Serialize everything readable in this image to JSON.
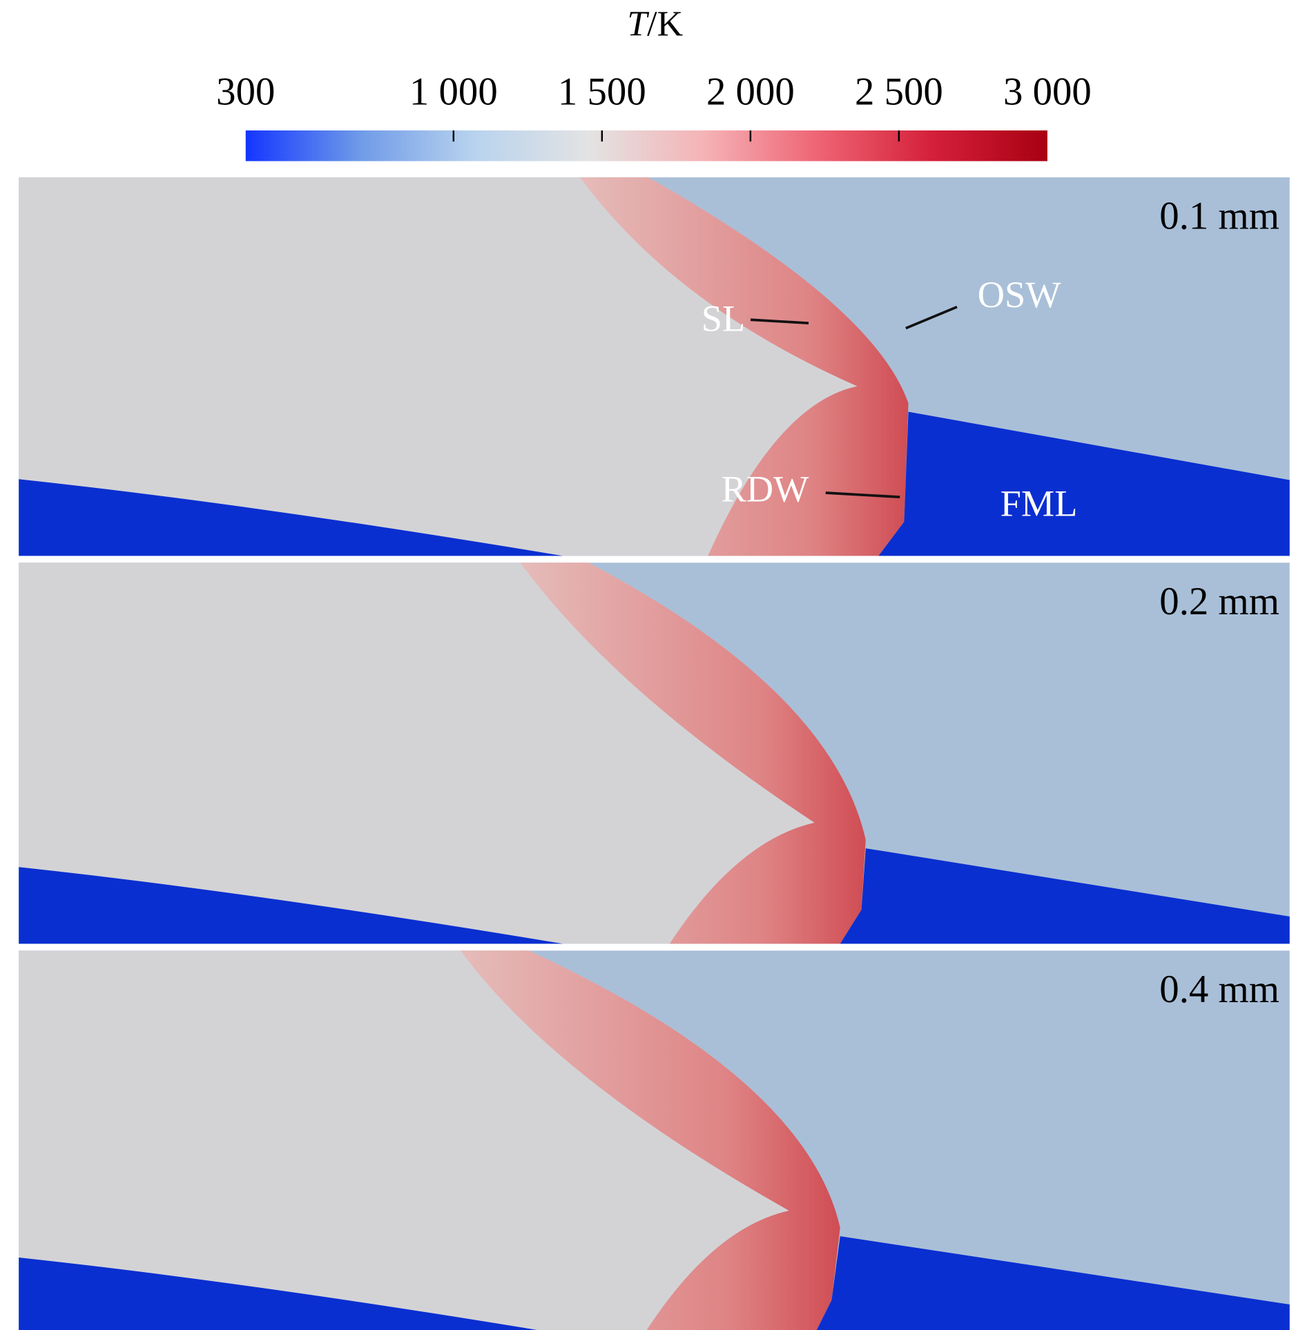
{
  "chart_data": {
    "type": "contour",
    "colorbar": {
      "title_variable": "T",
      "title_unit": "/K",
      "lim": [
        300,
        3000
      ],
      "ticks": [
        300,
        {
          "value": 1000,
          "label": "1 000"
        },
        {
          "value": 1500,
          "label": "1 500"
        },
        {
          "value": 2000,
          "label": "2 000"
        },
        {
          "value": 2500,
          "label": "2 500"
        },
        {
          "value": 3000,
          "label": "3 000"
        }
      ],
      "colors": [
        "#1436ff",
        "#6f9be8",
        "#b9d3ee",
        "#e3e3e3",
        "#f5b3b6",
        "#ee6474",
        "#d4203a",
        "#a80012"
      ]
    },
    "panels": [
      {
        "label": "0.1 mm",
        "annotations": [
          "SL",
          "OSW",
          "RDW",
          "FML"
        ]
      },
      {
        "label": "0.2 mm",
        "annotations": []
      },
      {
        "label": "0.4 mm",
        "annotations": []
      }
    ]
  }
}
